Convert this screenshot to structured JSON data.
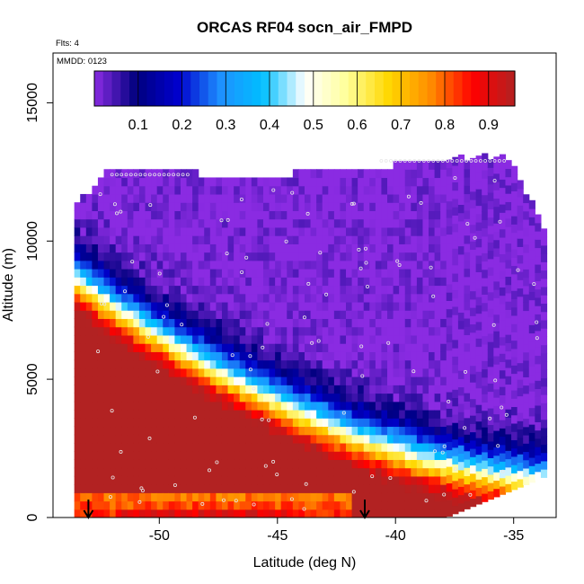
{
  "chart_data": {
    "type": "heatmap",
    "title": "ORCAS RF04 socn_air_FMPD",
    "xlabel": "Latitude (deg N)",
    "ylabel": "Altitude (m)",
    "xlim": [
      -54.5,
      -33.2
    ],
    "ylim": [
      0,
      16800
    ],
    "x_ticks": [
      -50,
      -45,
      -40,
      -35
    ],
    "x_tick_labels": [
      "-50",
      "-45",
      "-40",
      "-35"
    ],
    "y_ticks": [
      0,
      5000,
      10000,
      15000
    ],
    "y_tick_labels": [
      "0",
      "5000",
      "10000",
      "15000"
    ],
    "annotations": {
      "flights": "Flts: 4",
      "mmdd": "MMDD: 0123"
    },
    "colorbar": {
      "range": [
        0,
        0.96
      ],
      "ticks": [
        0.1,
        0.2,
        0.3,
        0.4,
        0.5,
        0.6,
        0.7,
        0.8,
        0.9
      ],
      "tick_labels": [
        "0.1",
        "0.2",
        "0.3",
        "0.4",
        "0.5",
        "0.6",
        "0.7",
        "0.8",
        "0.9"
      ],
      "colors": [
        "#8a2be2",
        "#00007f",
        "#0000cd",
        "#1e90ff",
        "#00bfff",
        "#ffffff",
        "#ffff99",
        "#ffd700",
        "#ff8c00",
        "#ff0000",
        "#b22222"
      ]
    },
    "markers": {
      "arrows_latitude": [
        -53.0,
        -41.3
      ]
    }
  }
}
